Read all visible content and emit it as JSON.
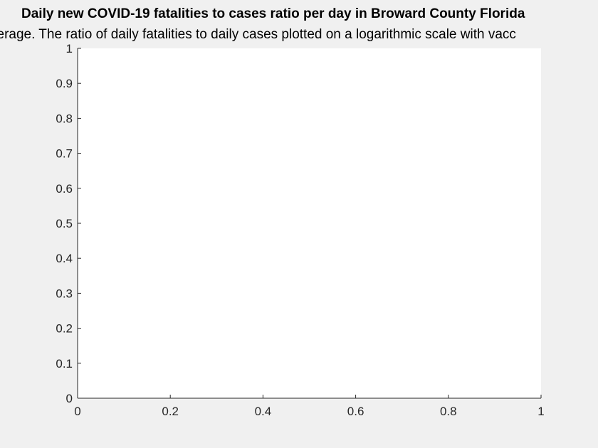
{
  "chart_data": {
    "type": "line",
    "title": "Daily new COVID-19 fatalities to cases ratio per day in Broward County Florida",
    "subtitle": "verage. The ratio of daily fatalities to daily cases plotted on a logarithmic scale with vacc",
    "xlabel": "",
    "ylabel": "",
    "xlim": [
      0,
      1
    ],
    "ylim": [
      0,
      1
    ],
    "xticks": [
      "0",
      "0.2",
      "0.4",
      "0.6",
      "0.8",
      "1"
    ],
    "yticks": [
      "0",
      "0.1",
      "0.2",
      "0.3",
      "0.4",
      "0.5",
      "0.6",
      "0.7",
      "0.8",
      "0.9",
      "1"
    ],
    "grid": false,
    "series": []
  },
  "colors": {
    "figure_background": "#f0f0f0",
    "axes_background": "#ffffff",
    "axis_line": "#262626"
  }
}
